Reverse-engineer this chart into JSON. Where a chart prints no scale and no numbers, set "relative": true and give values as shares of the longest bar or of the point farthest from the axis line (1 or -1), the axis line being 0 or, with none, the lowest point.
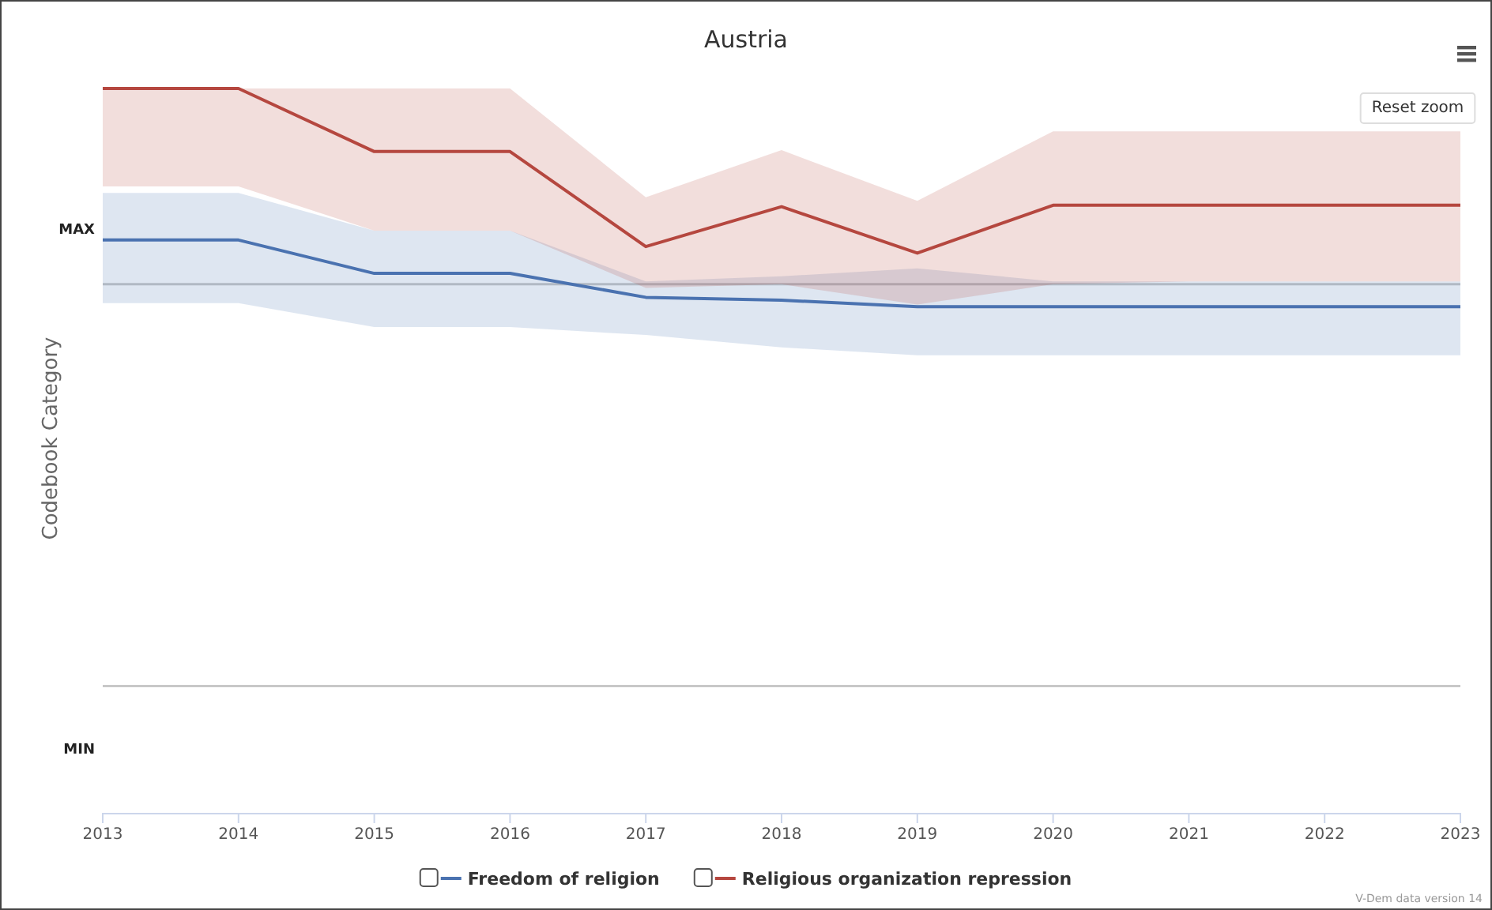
{
  "chart_data": {
    "type": "line",
    "title": "Austria",
    "ylabel": "Codebook Category",
    "relative": true,
    "x": [
      2013,
      2014,
      2015,
      2016,
      2017,
      2018,
      2019,
      2020,
      2021,
      2022,
      2023
    ],
    "xlim": [
      2013,
      2023
    ],
    "xticks": [
      2013,
      2014,
      2015,
      2016,
      2017,
      2018,
      2019,
      2020,
      2021,
      2022,
      2023
    ],
    "legend": "bottom",
    "marker": "none",
    "line_style": "solid",
    "ref_lines": [
      {
        "axis": "y",
        "value": 0.73,
        "color": "#c8c8c8"
      },
      {
        "axis": "y",
        "value": 0.176,
        "color": "#c8c8c8"
      }
    ],
    "series": [
      {
        "name": "Freedom of religion",
        "color": "#4a72b0",
        "values": [
          0.791,
          0.791,
          0.745,
          0.745,
          0.712,
          0.708,
          0.699,
          0.699,
          0.699,
          0.699,
          0.699
        ],
        "lower": [
          0.704,
          0.704,
          0.671,
          0.671,
          0.66,
          0.643,
          0.632,
          0.632,
          0.632,
          0.632,
          0.632
        ],
        "upper": [
          0.856,
          0.856,
          0.804,
          0.804,
          0.734,
          0.741,
          0.752,
          0.734,
          0.734,
          0.734,
          0.734
        ]
      },
      {
        "name": "Religious organization repression",
        "color": "#b5473f",
        "values": [
          1,
          1,
          0.913,
          0.913,
          0.782,
          0.837,
          0.773,
          0.839,
          0.839,
          0.839,
          0.839
        ],
        "lower": [
          0.865,
          0.865,
          0.804,
          0.804,
          0.725,
          0.73,
          0.702,
          0.73,
          0.734,
          0.734,
          0.734
        ],
        "upper": [
          1,
          1,
          1,
          1,
          0.85,
          0.915,
          0.845,
          0.941,
          0.941,
          0.941,
          0.941
        ]
      }
    ],
    "annotations": [
      "MAX",
      "MIN",
      "Reset zoom",
      "V-Dem data version 14"
    ]
  }
}
